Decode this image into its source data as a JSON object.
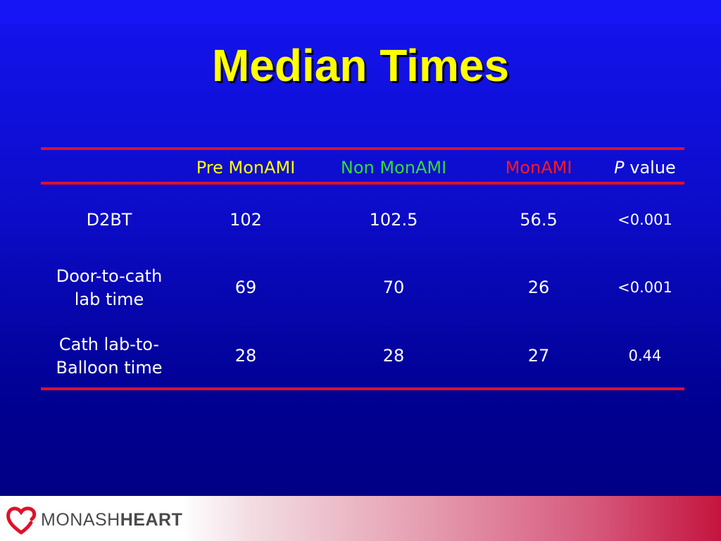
{
  "slide": {
    "title": "Median Times"
  },
  "table": {
    "headers": [
      {
        "text": "Pre MonAMI",
        "color": "#ffff00"
      },
      {
        "text": "Non MonAMI",
        "color": "#33dd33"
      },
      {
        "text": "MonAMI",
        "color": "#ff1a1a"
      },
      {
        "italic": "P",
        "rest": " value",
        "color": "#ffffff"
      }
    ],
    "rows": [
      {
        "label": "D2BT",
        "values": [
          "102",
          "102.5",
          "56.5"
        ],
        "p": "<0.001"
      },
      {
        "label_lines": [
          "Door-to-cath",
          "lab time"
        ],
        "values": [
          "69",
          "70",
          "26"
        ],
        "p": "<0.001"
      },
      {
        "label_lines": [
          "Cath lab-to-",
          "Balloon time"
        ],
        "values": [
          "28",
          "28",
          "27"
        ],
        "p": "0.44"
      }
    ],
    "rule_color": "#e0102a"
  },
  "footer": {
    "logo_light": "MONASH",
    "logo_bold": "HEART",
    "logo_color": "#e0102a"
  }
}
